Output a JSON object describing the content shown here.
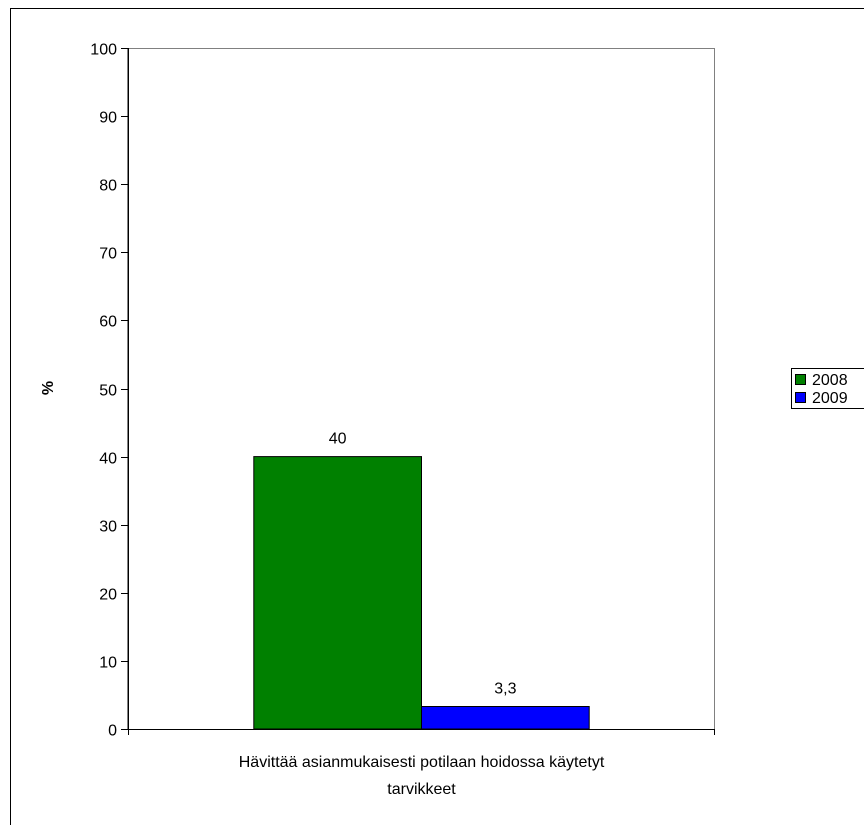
{
  "chart_data": {
    "type": "bar",
    "title": "",
    "xlabel": "",
    "ylabel": "%",
    "ylim": [
      0,
      100
    ],
    "yticks": [
      0,
      10,
      20,
      30,
      40,
      50,
      60,
      70,
      80,
      90,
      100
    ],
    "grid": false,
    "legend_position": "right",
    "categories": [
      "Hävittää asianmukaisesti potilaan hoidossa käytetyt tarvikkeet"
    ],
    "category_lines": [
      "Hävittää asianmukaisesti potilaan hoidossa käytetyt",
      "tarvikkeet"
    ],
    "series": [
      {
        "name": "2008",
        "values": [
          40
        ],
        "labels": [
          "40"
        ],
        "color": "#008000"
      },
      {
        "name": "2009",
        "values": [
          3.3
        ],
        "labels": [
          "3,3"
        ],
        "color": "#0000ff"
      }
    ]
  }
}
